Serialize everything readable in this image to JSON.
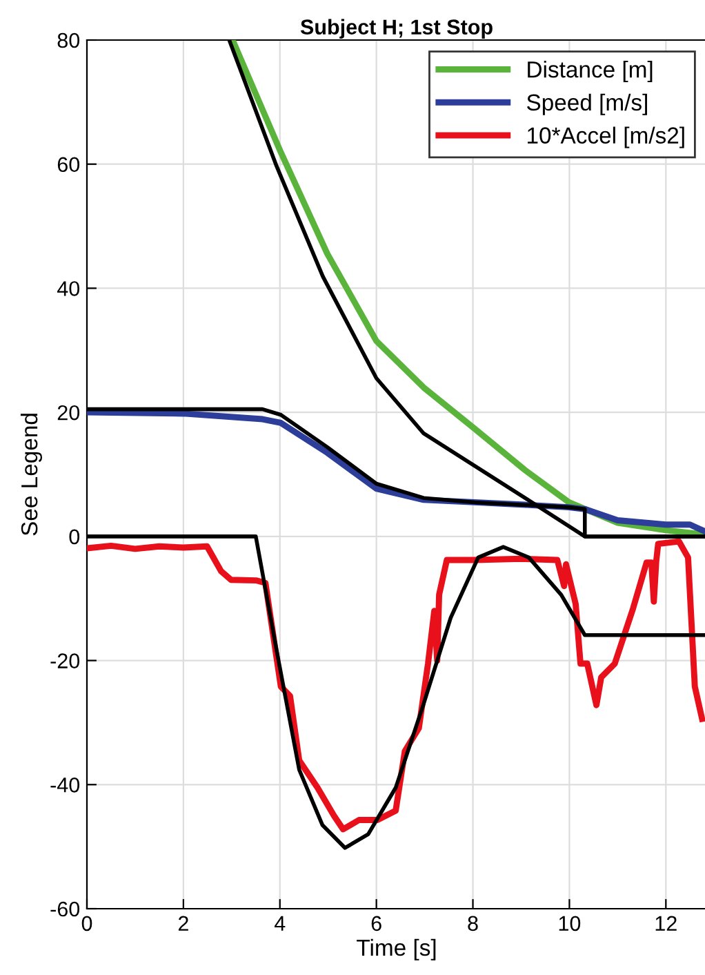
{
  "chart_data": {
    "type": "line",
    "title": "Subject H; 1st Stop",
    "xlabel": "Time [s]",
    "ylabel": "See Legend",
    "xlim": [
      0,
      12.84
    ],
    "ylim": [
      -60,
      80
    ],
    "xticks": [
      0,
      2,
      4,
      6,
      8,
      10,
      12
    ],
    "yticks": [
      -60,
      -40,
      -20,
      0,
      20,
      40,
      60,
      80
    ],
    "grid": true,
    "legend": "top right",
    "marker": "none",
    "line_style": "solid",
    "series": [
      {
        "name": "Distance [m]",
        "color": "#5ab43c",
        "x": [
          3.02,
          4.02,
          4.98,
          6.0,
          6.98,
          8.03,
          9.08,
          9.99,
          11.0,
          12.0,
          12.81
        ],
        "values": [
          80,
          61.9,
          45.6,
          31.5,
          24,
          17.4,
          10.7,
          5.5,
          2.2,
          1.0,
          0.3
        ]
      },
      {
        "name": "Speed [m/s]",
        "color": "#2c3e9a",
        "x": [
          0,
          2,
          3.64,
          4.02,
          4.98,
          6.0,
          6.98,
          8.03,
          9.08,
          9.99,
          10.32,
          11.0,
          12.0,
          12.5,
          12.81
        ],
        "values": [
          20,
          19.8,
          18.9,
          18.3,
          13.5,
          7.7,
          5.9,
          5.5,
          5.1,
          4.7,
          4.4,
          2.6,
          1.9,
          1.9,
          0.8
        ]
      },
      {
        "name": "10*Accel [m/s2]",
        "color": "#e8101a",
        "x": [
          0,
          0.5,
          1.0,
          1.5,
          2.0,
          2.49,
          2.78,
          2.99,
          3.52,
          3.7,
          4.02,
          4.21,
          4.4,
          4.78,
          5.12,
          5.31,
          5.64,
          6.02,
          6.4,
          6.59,
          6.88,
          7.07,
          7.2,
          7.26,
          7.3,
          7.46,
          8.03,
          9.0,
          9.75,
          9.89,
          9.93,
          10.13,
          10.23,
          10.37,
          10.56,
          10.66,
          10.94,
          11.32,
          11.6,
          11.7,
          11.75,
          11.8,
          11.84,
          12.27,
          12.46,
          12.6,
          12.75
        ],
        "values": [
          -1.9,
          -1.5,
          -2.0,
          -1.6,
          -1.8,
          -1.6,
          -5.6,
          -7.0,
          -7.1,
          -7.5,
          -24.2,
          -25.7,
          -36.1,
          -40.5,
          -45,
          -47.2,
          -45.7,
          -45.7,
          -44.2,
          -34.6,
          -30.9,
          -20.5,
          -12,
          -20,
          -9.4,
          -3.8,
          -3.8,
          -3.6,
          -3.8,
          -8.0,
          -4.5,
          -10.9,
          -20.5,
          -20.5,
          -27.2,
          -22.7,
          -20.5,
          -11.6,
          -4.2,
          -4.2,
          -10.5,
          -4.0,
          -1.2,
          -0.8,
          -3.4,
          -24.2,
          -29.4
        ]
      },
      {
        "color": "#000000",
        "x": [
          2.95,
          3.93,
          4.89,
          6.0,
          6.98,
          8.03,
          9.08,
          10.32,
          12.84
        ],
        "values": [
          80,
          59.7,
          41.9,
          25.5,
          16.6,
          11.4,
          6.2,
          0,
          0
        ]
      },
      {
        "color": "#000000",
        "x": [
          0,
          3.64,
          4.02,
          4.98,
          6.0,
          6.98,
          8.03,
          9.99,
          10.32,
          10.32,
          12.84
        ],
        "values": [
          20.5,
          20.5,
          19.6,
          14.4,
          8.5,
          6.2,
          5.5,
          4.7,
          4.4,
          0,
          0
        ]
      },
      {
        "color": "#000000",
        "x": [
          0,
          3.5,
          3.93,
          4.4,
          4.88,
          5.35,
          5.83,
          6.4,
          6.97,
          7.54,
          8.11,
          8.63,
          9.16,
          9.83,
          10.32,
          12.84
        ],
        "values": [
          0,
          0,
          -18.3,
          -37.6,
          -46.5,
          -50.2,
          -48,
          -40.5,
          -27.2,
          -13.1,
          -3.4,
          -1.7,
          -3.4,
          -9.4,
          -15.9,
          -15.9
        ]
      }
    ]
  }
}
